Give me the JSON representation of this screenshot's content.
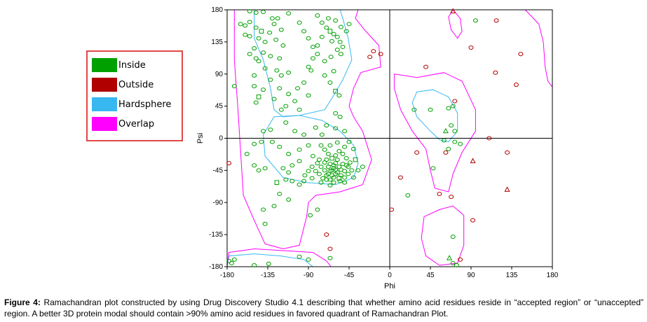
{
  "chart_data": {
    "type": "scatter",
    "title": "",
    "xlabel": "Phi",
    "ylabel": "Psi",
    "xlim": [
      -180,
      180
    ],
    "ylim": [
      -180,
      180
    ],
    "xticks": [
      -180,
      -135,
      -90,
      -45,
      0,
      45,
      90,
      135,
      180
    ],
    "yticks": [
      -180,
      -135,
      -90,
      -45,
      0,
      45,
      90,
      135,
      180
    ],
    "legend": [
      {
        "label": "Inside",
        "color": "#00a000"
      },
      {
        "label": "Outside",
        "color": "#b00000"
      },
      {
        "label": "Hardsphere",
        "color": "#38b8f0"
      },
      {
        "label": "Overlap",
        "color": "#ff00ff"
      }
    ],
    "series": [
      {
        "name": "Inside",
        "color": "#00a000",
        "points": [
          [
            -155,
            178
          ],
          [
            -148,
            176
          ],
          [
            -140,
            177
          ],
          [
            -130,
            168
          ],
          [
            -155,
            163
          ],
          [
            -160,
            158
          ],
          [
            -148,
            155
          ],
          [
            -142,
            150
          ],
          [
            -133,
            148
          ],
          [
            -120,
            152
          ],
          [
            -155,
            143
          ],
          [
            -145,
            140
          ],
          [
            -138,
            135
          ],
          [
            -126,
            138
          ],
          [
            -118,
            130
          ],
          [
            -150,
            126
          ],
          [
            -140,
            120
          ],
          [
            -132,
            115
          ],
          [
            -122,
            112
          ],
          [
            -145,
            108
          ],
          [
            -138,
            98
          ],
          [
            -125,
            95
          ],
          [
            -150,
            88
          ],
          [
            -132,
            82
          ],
          [
            -120,
            88
          ],
          [
            -150,
            73
          ],
          [
            -140,
            68
          ],
          [
            -122,
            70
          ],
          [
            -112,
            62
          ],
          [
            -172,
            73
          ],
          [
            -145,
            58
          ],
          [
            -128,
            55
          ],
          [
            -115,
            45
          ],
          [
            -105,
            52
          ],
          [
            -148,
            50
          ],
          [
            -112,
            92
          ],
          [
            -95,
            78
          ],
          [
            -102,
            70
          ],
          [
            -160,
            145
          ],
          [
            -165,
            160
          ],
          [
            -155,
            118
          ],
          [
            -148,
            112
          ],
          [
            -128,
            160
          ],
          [
            -124,
            168
          ],
          [
            -112,
            175
          ],
          [
            -100,
            162
          ],
          [
            -95,
            150
          ],
          [
            -90,
            140
          ],
          [
            -85,
            128
          ],
          [
            -80,
            118
          ],
          [
            -72,
            108
          ],
          [
            -75,
            162
          ],
          [
            -70,
            155
          ],
          [
            -66,
            150
          ],
          [
            -62,
            146
          ],
          [
            -58,
            142
          ],
          [
            -55,
            135
          ],
          [
            -52,
            128
          ],
          [
            -48,
            150
          ],
          [
            -45,
            160
          ],
          [
            -80,
            172
          ],
          [
            -68,
            168
          ],
          [
            -60,
            165
          ],
          [
            -54,
            156
          ],
          [
            -64,
            136
          ],
          [
            -58,
            124
          ],
          [
            -65,
            114
          ],
          [
            -90,
            100
          ],
          [
            -54,
            118
          ],
          [
            -62,
            94
          ],
          [
            -80,
            130
          ],
          [
            -85,
            112
          ],
          [
            -75,
            142
          ],
          [
            -87,
            95
          ],
          [
            -72,
            88
          ],
          [
            -66,
            78
          ],
          [
            -60,
            66
          ],
          [
            -56,
            60
          ],
          [
            -90,
            60
          ],
          [
            -100,
            40
          ],
          [
            -120,
            40
          ],
          [
            -115,
            22
          ],
          [
            -105,
            10
          ],
          [
            -95,
            5
          ],
          [
            -132,
            12
          ],
          [
            -130,
            -5
          ],
          [
            -122,
            -12
          ],
          [
            -112,
            -22
          ],
          [
            -100,
            -16
          ],
          [
            -90,
            -10
          ],
          [
            -85,
            -25
          ],
          [
            -78,
            -30
          ],
          [
            -75,
            5
          ],
          [
            -82,
            15
          ],
          [
            -70,
            18
          ],
          [
            -60,
            14
          ],
          [
            -50,
            10
          ],
          [
            -45,
            -5
          ],
          [
            -40,
            -15
          ],
          [
            -38,
            -30
          ],
          [
            -35,
            -45
          ],
          [
            -30,
            -40
          ],
          [
            -40,
            -55
          ],
          [
            -50,
            -62
          ],
          [
            -55,
            -60
          ],
          [
            -62,
            -55
          ],
          [
            -68,
            -50
          ],
          [
            -72,
            -45
          ],
          [
            -76,
            -40
          ],
          [
            -80,
            -35
          ],
          [
            -70,
            -30
          ],
          [
            -66,
            -36
          ],
          [
            -62,
            -42
          ],
          [
            -58,
            -48
          ],
          [
            -54,
            -52
          ],
          [
            -50,
            -46
          ],
          [
            -46,
            -40
          ],
          [
            -44,
            -34
          ],
          [
            -48,
            -28
          ],
          [
            -52,
            -22
          ],
          [
            -56,
            -18
          ],
          [
            -60,
            -24
          ],
          [
            -64,
            -28
          ],
          [
            -68,
            -22
          ],
          [
            -72,
            -16
          ],
          [
            -76,
            -10
          ],
          [
            -66,
            -10
          ],
          [
            -58,
            -6
          ],
          [
            -50,
            -12
          ],
          [
            -62,
            -62
          ],
          [
            -66,
            -58
          ],
          [
            -70,
            -52
          ],
          [
            -74,
            -56
          ],
          [
            -78,
            -50
          ],
          [
            -82,
            -46
          ],
          [
            -86,
            -40
          ],
          [
            -90,
            -46
          ],
          [
            -94,
            -52
          ],
          [
            -86,
            -56
          ],
          [
            -76,
            -62
          ],
          [
            -66,
            -66
          ],
          [
            -56,
            -40
          ],
          [
            -52,
            -36
          ],
          [
            -60,
            -35
          ],
          [
            -64,
            -45
          ],
          [
            -56,
            -56
          ],
          [
            -60,
            -50
          ],
          [
            -68,
            -40
          ],
          [
            -72,
            -34
          ],
          [
            -58,
            -30
          ],
          [
            -50,
            -55
          ],
          [
            -46,
            -50
          ],
          [
            -42,
            -45
          ],
          [
            -48,
            -38
          ],
          [
            -54,
            -44
          ],
          [
            -60,
            -44
          ],
          [
            -64,
            -52
          ],
          [
            -70,
            -58
          ],
          [
            -62,
            -38
          ],
          [
            -66,
            -46
          ],
          [
            -100,
            -32
          ],
          [
            -108,
            -38
          ],
          [
            -112,
            -48
          ],
          [
            -118,
            -42
          ],
          [
            -95,
            -60
          ],
          [
            -100,
            -65
          ],
          [
            -108,
            -60
          ],
          [
            -115,
            -58
          ],
          [
            -125,
            -62
          ],
          [
            -138,
            -42
          ],
          [
            -145,
            -45
          ],
          [
            -150,
            -38
          ],
          [
            -158,
            -22
          ],
          [
            -142,
            -5
          ],
          [
            -140,
            10
          ],
          [
            -122,
            -78
          ],
          [
            -112,
            -86
          ],
          [
            -128,
            -95
          ],
          [
            -140,
            -100
          ],
          [
            -138,
            -120
          ],
          [
            -88,
            -108
          ],
          [
            -80,
            -100
          ],
          [
            -175,
            -175
          ],
          [
            -178,
            -172
          ],
          [
            -150,
            -178
          ],
          [
            -134,
            -176
          ],
          [
            -100,
            -166
          ],
          [
            -90,
            -170
          ],
          [
            -66,
            -168
          ]
        ]
      },
      {
        "name": "Outside",
        "color": "#b00000",
        "points": [
          [
            -18,
            122
          ],
          [
            -22,
            114
          ],
          [
            -10,
            118
          ],
          [
            -178,
            -35
          ],
          [
            70,
            178
          ],
          [
            118,
            165
          ],
          [
            90,
            127
          ],
          [
            145,
            118
          ],
          [
            40,
            100
          ],
          [
            117,
            92
          ],
          [
            140,
            75
          ],
          [
            72,
            52
          ],
          [
            110,
            0
          ],
          [
            92,
            -32
          ],
          [
            130,
            -20
          ],
          [
            30,
            -20
          ],
          [
            62,
            -20
          ],
          [
            2,
            -100
          ],
          [
            12,
            -55
          ],
          [
            55,
            -78
          ],
          [
            68,
            -82
          ],
          [
            92,
            -115
          ],
          [
            130,
            -72
          ],
          [
            -70,
            -135
          ],
          [
            -66,
            -155
          ],
          [
            78,
            -170
          ]
        ]
      },
      {
        "name": "Hardsphere",
        "color": "#38b8f0",
        "points": [
          [
            -60,
            35
          ],
          [
            -55,
            30
          ],
          [
            -150,
            -8
          ],
          [
            27,
            40
          ],
          [
            20,
            -80
          ]
        ]
      },
      {
        "name": "Overlap",
        "color": "#ff00ff",
        "points": [
          [
            -172,
            -170
          ],
          [
            45,
            40
          ],
          [
            65,
            42
          ],
          [
            70,
            45
          ],
          [
            62,
            10
          ],
          [
            68,
            18
          ],
          [
            72,
            10
          ],
          [
            48,
            -42
          ],
          [
            72,
            -5
          ],
          [
            65,
            -15
          ],
          [
            60,
            -3
          ],
          [
            78,
            -8
          ],
          [
            70,
            -138
          ],
          [
            66,
            -168
          ],
          [
            70,
            -175
          ],
          [
            74,
            -178
          ],
          [
            95,
            165
          ]
        ]
      }
    ]
  },
  "legend": {
    "inside": "Inside",
    "outside": "Outside",
    "hardsphere": "Hardsphere",
    "overlap": "Overlap"
  },
  "caption": {
    "bold": "Figure 4:",
    "text": " Ramachandran plot constructed by using Drug Discovery Studio 4.1 describing that whether amino acid residues reside in “accepted region” or “unaccepted” region. A better 3D protein modal should contain >90% amino acid residues in favored quadrant of Ramachandran Plot."
  }
}
